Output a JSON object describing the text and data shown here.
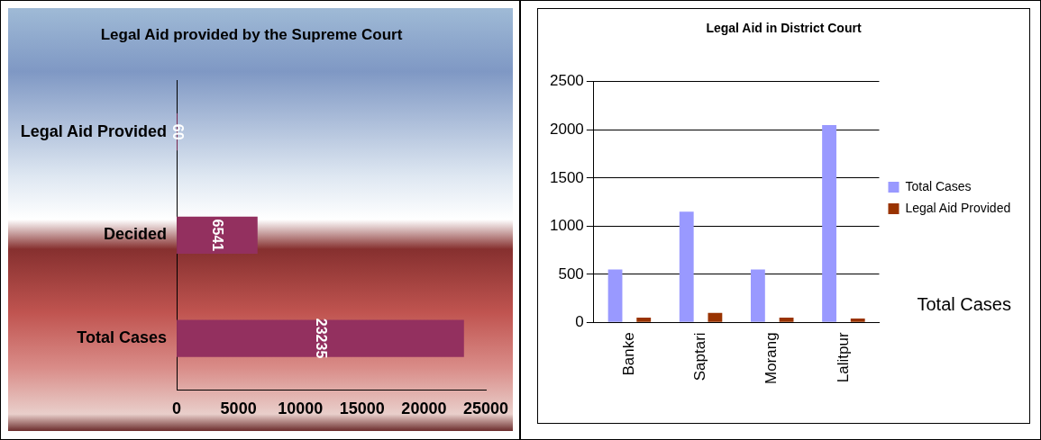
{
  "chart_data": [
    {
      "type": "bar",
      "title": "Legal Aid provided by the Supreme Court",
      "orientation": "horizontal",
      "categories": [
        "Legal Aid Provided",
        "Decided",
        "Total Cases"
      ],
      "values": [
        60,
        6541,
        23235
      ],
      "color": "#93305f",
      "xlim": [
        0,
        25000
      ],
      "xticks": [
        0,
        5000,
        10000,
        15000,
        20000,
        25000
      ],
      "grid": false,
      "legend": false,
      "data_labels": true
    },
    {
      "type": "bar",
      "title": "Legal Aid in District Court",
      "categories": [
        "Banke",
        "Saptari",
        "Morang",
        "Lalitpur"
      ],
      "series": [
        {
          "name": "Total Cases",
          "color": "#9999ff",
          "values": [
            550,
            1150,
            550,
            2050
          ]
        },
        {
          "name": "Legal Aid Provided",
          "color": "#993300",
          "values": [
            50,
            100,
            50,
            40
          ]
        }
      ],
      "ylim": [
        0,
        2500
      ],
      "yticks": [
        0,
        500,
        1000,
        1500,
        2000,
        2500
      ],
      "grid": "y",
      "legend": "right",
      "annotations": [
        "Total Cases"
      ]
    }
  ]
}
